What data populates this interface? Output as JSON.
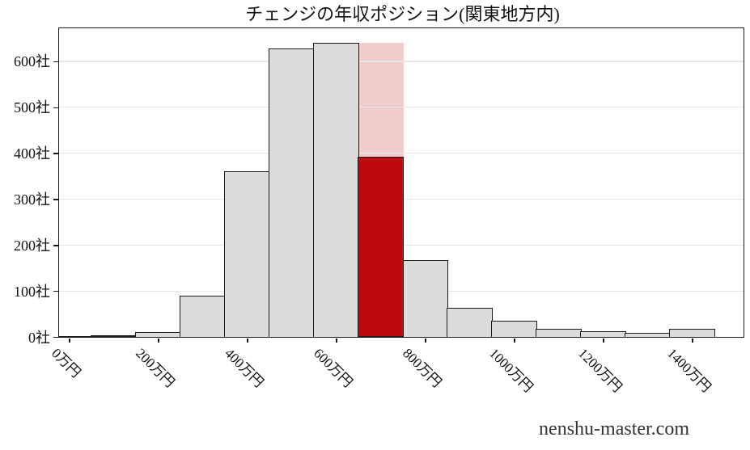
{
  "page": {
    "background": "#ffffff"
  },
  "watermark": "nenshu-master.com",
  "chart_data": {
    "type": "bar",
    "title": "チェンジの年収ポジション(関東地方内)",
    "subtitle": "",
    "categories": [
      "0万円",
      "100万円",
      "200万円",
      "300万円",
      "400万円",
      "500万円",
      "600万円",
      "700万円",
      "800万円",
      "900万円",
      "1000万円",
      "1100万円",
      "1200万円",
      "1300万円",
      "1400万円"
    ],
    "values": [
      1,
      3,
      10,
      90,
      361,
      628,
      641,
      641,
      168,
      63,
      35,
      18,
      12,
      9,
      18
    ],
    "highlight": {
      "category": "700万円",
      "index": 7,
      "bin_total": 641,
      "position_value": 392
    },
    "x_tick_labels": [
      "0万円",
      "200万円",
      "400万円",
      "600万円",
      "800万円",
      "1000万円",
      "1200万円",
      "1400万円"
    ],
    "y_tick_labels": [
      "0社",
      "100社",
      "200社",
      "300社",
      "400社",
      "500社",
      "600社"
    ],
    "y_ticks": [
      0,
      100,
      200,
      300,
      400,
      500,
      600
    ],
    "ylim": [
      0,
      672
    ],
    "xlabel": "",
    "ylabel": "",
    "grid": "horizontal-only",
    "legend": "none",
    "bin_width_manen": 100,
    "colors": {
      "bar_fill": "#dcdcdc",
      "bar_edge": "#1a1a1a",
      "highlight_fill": "#bf0b0b",
      "highlight_light_fill": "#f2cdce",
      "gridline": "#e7e7e7",
      "axis_text": "#111111",
      "watermark_text": "#333333"
    }
  }
}
